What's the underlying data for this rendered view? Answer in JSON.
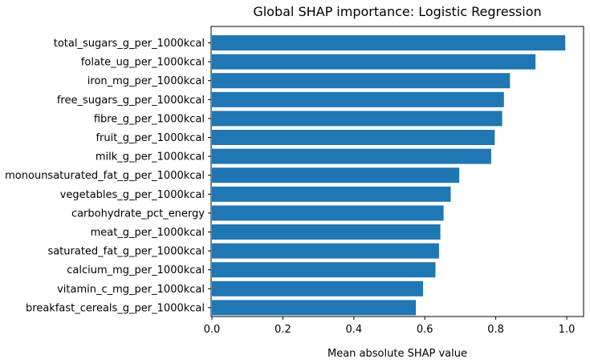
{
  "chart_data": {
    "type": "bar",
    "orientation": "horizontal",
    "title": "Global SHAP importance: Logistic Regression",
    "xlabel": "Mean absolute SHAP value",
    "ylabel": "",
    "xlim": [
      0.0,
      1.0
    ],
    "xticks": [
      "0.0",
      "0.2",
      "0.4",
      "0.6",
      "0.8",
      "1.0"
    ],
    "bar_color": "#1f77b4",
    "grid": false,
    "categories": [
      "total_sugars_g_per_1000kcal",
      "folate_ug_per_1000kcal",
      "iron_mg_per_1000kcal",
      "free_sugars_g_per_1000kcal",
      "fibre_g_per_1000kcal",
      "fruit_g_per_1000kcal",
      "milk_g_per_1000kcal",
      "monounsaturated_fat_g_per_1000kcal",
      "vegetables_g_per_1000kcal",
      "carbohydrate_pct_energy",
      "meat_g_per_1000kcal",
      "saturated_fat_g_per_1000kcal",
      "calcium_mg_per_1000kcal",
      "vitamin_c_mg_per_1000kcal",
      "breakfast_cereals_g_per_1000kcal"
    ],
    "values": [
      0.996,
      0.912,
      0.84,
      0.823,
      0.818,
      0.797,
      0.787,
      0.697,
      0.673,
      0.653,
      0.644,
      0.64,
      0.63,
      0.595,
      0.575
    ]
  }
}
